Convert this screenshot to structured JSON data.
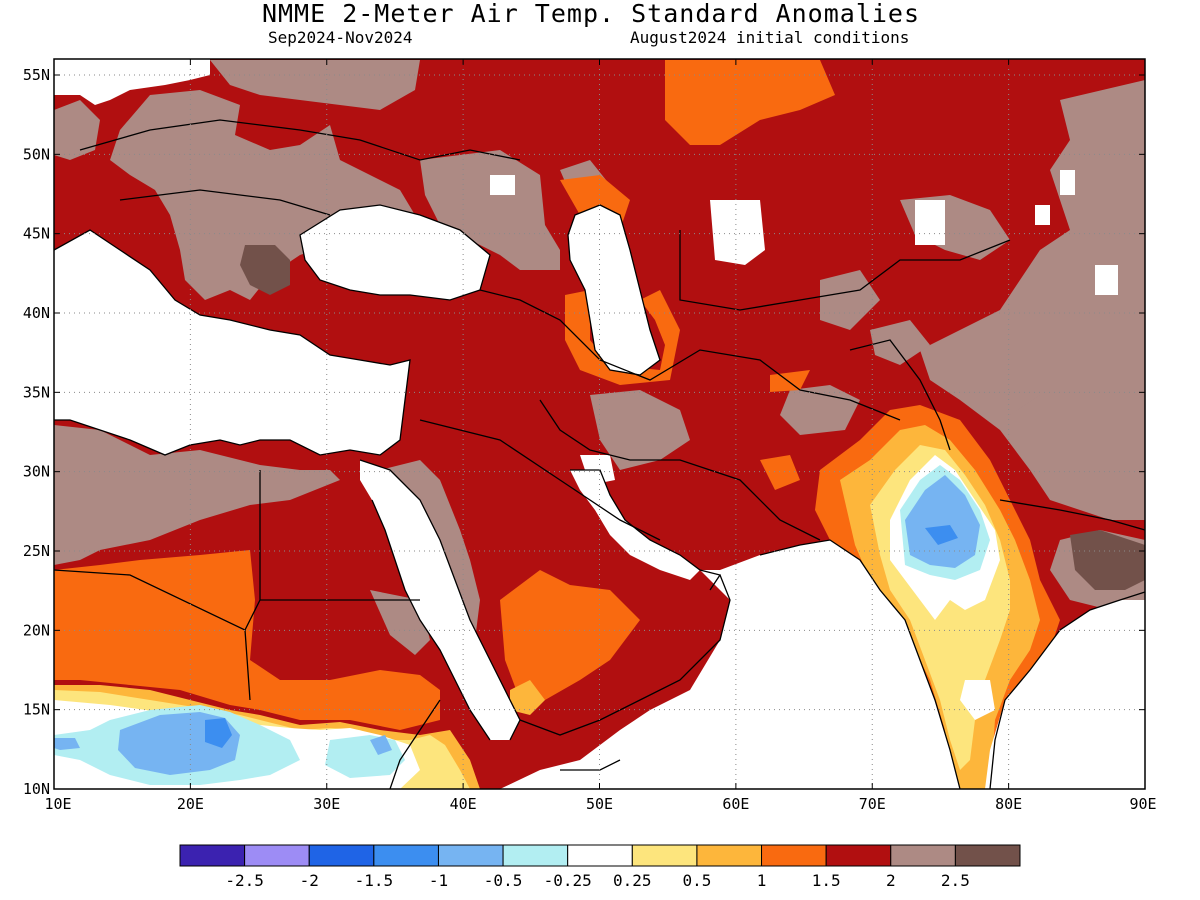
{
  "header": {
    "title": "NMME 2-Meter Air Temp. Standard Anomalies",
    "period": "Sep2024-Nov2024",
    "init": "August2024 initial conditions"
  },
  "axes": {
    "x_ticks": [
      "10E",
      "20E",
      "30E",
      "40E",
      "50E",
      "60E",
      "70E",
      "80E",
      "90E"
    ],
    "y_ticks": [
      "55N",
      "50N",
      "45N",
      "40N",
      "35N",
      "30N",
      "25N",
      "20N",
      "15N",
      "10N"
    ]
  },
  "colorbar": {
    "colors": [
      "#3b22b0",
      "#9d8cf5",
      "#1f64e6",
      "#3c8ef0",
      "#76b4f2",
      "#b2eef2",
      "#ffffff",
      "#fde57d",
      "#fdb63b",
      "#f96a10",
      "#b10f10",
      "#ad8a84",
      "#72514a"
    ],
    "labels": [
      "-2.5",
      "-2",
      "-1.5",
      "-1",
      "-0.5",
      "-0.25",
      "0.25",
      "0.5",
      "1",
      "1.5",
      "2",
      "2.5"
    ]
  },
  "colors": {
    "water": "#ffffff",
    "land_default": "#b10f10"
  }
}
